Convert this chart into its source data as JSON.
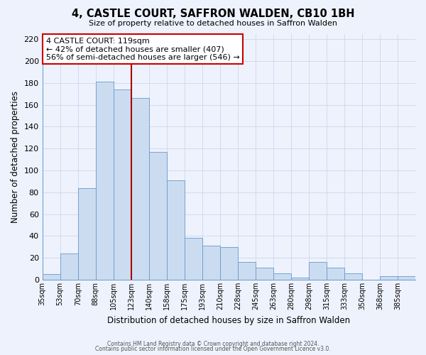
{
  "title": "4, CASTLE COURT, SAFFRON WALDEN, CB10 1BH",
  "subtitle": "Size of property relative to detached houses in Saffron Walden",
  "xlabel": "Distribution of detached houses by size in Saffron Walden",
  "ylabel": "Number of detached properties",
  "categories": [
    "35sqm",
    "53sqm",
    "70sqm",
    "88sqm",
    "105sqm",
    "123sqm",
    "140sqm",
    "158sqm",
    "175sqm",
    "193sqm",
    "210sqm",
    "228sqm",
    "245sqm",
    "263sqm",
    "280sqm",
    "298sqm",
    "315sqm",
    "333sqm",
    "350sqm",
    "368sqm",
    "385sqm"
  ],
  "bar_heights": [
    5,
    24,
    84,
    181,
    174,
    166,
    117,
    91,
    38,
    31,
    30,
    16,
    11,
    6,
    2,
    16,
    11,
    6,
    0,
    3,
    3
  ],
  "bar_fill_color": "#ccdcf0",
  "bar_edge_color": "#6699cc",
  "grid_color": "#c8d8ee",
  "background_color": "#eef2fc",
  "property_value_bin": 5,
  "red_line_color": "#aa0000",
  "annotation_title": "4 CASTLE COURT: 119sqm",
  "annotation_line1": "← 42% of detached houses are smaller (407)",
  "annotation_line2": "56% of semi-detached houses are larger (546) →",
  "annotation_box_edge": "#cc0000",
  "annotation_box_bg": "#ffffff",
  "ylim": [
    0,
    225
  ],
  "yticks": [
    0,
    20,
    40,
    60,
    80,
    100,
    120,
    140,
    160,
    180,
    200,
    220
  ],
  "footer1": "Contains HM Land Registry data © Crown copyright and database right 2024.",
  "footer2": "Contains public sector information licensed under the Open Government Licence v3.0."
}
